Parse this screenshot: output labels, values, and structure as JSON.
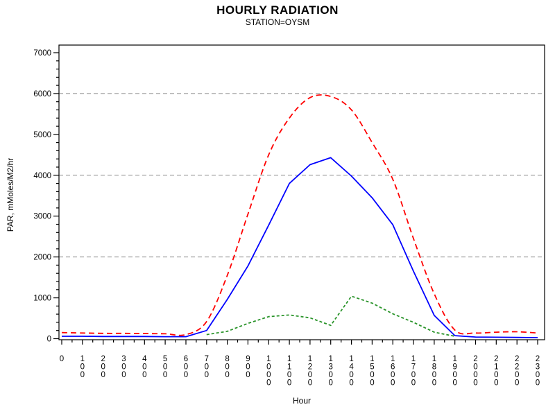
{
  "title": "HOURLY RADIATION",
  "subtitle": "STATION=OYSM",
  "chart_data": {
    "type": "line",
    "title": "HOURLY RADIATION",
    "subtitle": "STATION=OYSM",
    "xlabel": "Hour",
    "ylabel": "PAR, mMoles/M2/hr",
    "ylim": [
      0,
      7000
    ],
    "y_major_step": 1000,
    "y_minor_step": 200,
    "x_minor_step": 50,
    "gridlines_at": [
      2000,
      4000,
      6000
    ],
    "grid_color": "#8a8a8a",
    "legend_position": "none",
    "x": [
      0,
      100,
      200,
      300,
      400,
      500,
      600,
      700,
      800,
      900,
      1000,
      1100,
      1200,
      1300,
      1400,
      1500,
      1600,
      1700,
      1800,
      1900,
      2000,
      2100,
      2200,
      2300
    ],
    "series": [
      {
        "name": "series-red-dashed",
        "color": "#ff0000",
        "dash": "8 5",
        "smooth": true,
        "values": [
          150,
          140,
          130,
          130,
          125,
          120,
          100,
          420,
          1550,
          3050,
          4500,
          5400,
          5900,
          5930,
          5600,
          4800,
          3900,
          2450,
          1100,
          210,
          140,
          160,
          170,
          140
        ]
      },
      {
        "name": "series-blue-solid",
        "color": "#0000ff",
        "dash": null,
        "smooth": false,
        "values": [
          60,
          60,
          55,
          55,
          55,
          50,
          50,
          200,
          960,
          1780,
          2780,
          3800,
          4260,
          4430,
          3980,
          3450,
          2790,
          1650,
          570,
          75,
          40,
          35,
          30,
          25
        ]
      },
      {
        "name": "series-green-dashed",
        "color": "#2a942a",
        "dash": "4 3",
        "smooth": false,
        "values": [
          null,
          null,
          null,
          null,
          null,
          null,
          null,
          100,
          180,
          375,
          540,
          580,
          510,
          325,
          1040,
          870,
          610,
          400,
          160,
          60,
          null,
          null,
          null,
          null
        ]
      }
    ]
  }
}
